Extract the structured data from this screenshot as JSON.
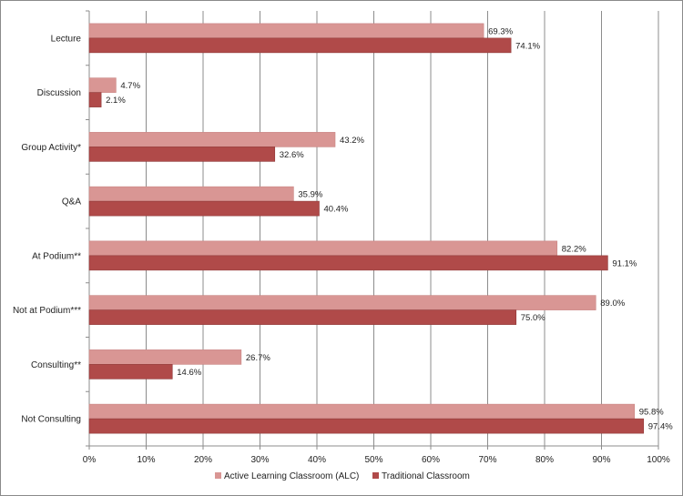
{
  "chart_data": {
    "type": "bar",
    "orientation": "horizontal",
    "title": "",
    "xlabel": "",
    "ylabel": "",
    "xlim": [
      0,
      100
    ],
    "x_ticks": [
      "0%",
      "10%",
      "20%",
      "30%",
      "40%",
      "50%",
      "60%",
      "70%",
      "80%",
      "90%",
      "100%"
    ],
    "grid": true,
    "legend_position": "bottom",
    "categories": [
      "Lecture",
      "Discussion",
      "Group Activity*",
      "Q&A",
      "At Podium**",
      "Not at Podium***",
      "Consulting**",
      "Not Consulting"
    ],
    "series": [
      {
        "name": "Active Learning Classroom (ALC)",
        "color": "#d99694",
        "values": [
          69.3,
          4.7,
          43.2,
          35.9,
          82.2,
          89.0,
          26.7,
          95.8
        ],
        "labels": [
          "69.3%",
          "4.7%",
          "43.2%",
          "35.9%",
          "82.2%",
          "89.0%",
          "26.7%",
          "95.8%"
        ]
      },
      {
        "name": "Traditional Classroom",
        "color": "#b04a49",
        "values": [
          74.1,
          2.1,
          32.6,
          40.4,
          91.1,
          75.0,
          14.6,
          97.4
        ],
        "labels": [
          "74.1%",
          "2.1%",
          "32.6%",
          "40.4%",
          "91.1%",
          "75.0%",
          "14.6%",
          "97.4%"
        ]
      }
    ]
  }
}
